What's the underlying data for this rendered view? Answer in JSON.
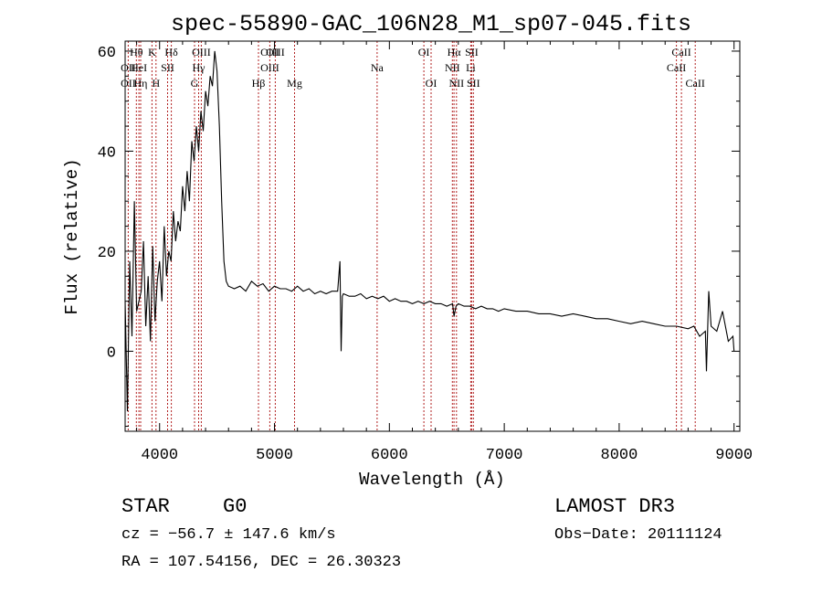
{
  "chart_data": {
    "type": "line",
    "title": "spec-55890-GAC_106N28_M1_sp07-045.fits",
    "xlabel": "Wavelength (Å)",
    "ylabel": "Flux (relative)",
    "xlim": [
      3700,
      9050
    ],
    "ylim": [
      -16,
      62
    ],
    "xticks": [
      4000,
      5000,
      6000,
      7000,
      8000,
      9000
    ],
    "xtick_labels": [
      "4000",
      "5000",
      "6000",
      "7000",
      "8000",
      "9000"
    ],
    "yticks": [
      0,
      20,
      40,
      60
    ],
    "ytick_labels": [
      "0",
      "20",
      "40",
      "60"
    ],
    "x_minor_step": 200,
    "y_minor_step": 5,
    "series": [
      {
        "name": "flux",
        "x": [
          3700,
          3720,
          3740,
          3760,
          3780,
          3800,
          3820,
          3840,
          3860,
          3880,
          3900,
          3920,
          3940,
          3960,
          3980,
          4000,
          4020,
          4040,
          4060,
          4080,
          4100,
          4120,
          4140,
          4160,
          4180,
          4200,
          4220,
          4240,
          4260,
          4280,
          4300,
          4320,
          4340,
          4360,
          4380,
          4400,
          4420,
          4440,
          4460,
          4480,
          4500,
          4520,
          4540,
          4560,
          4580,
          4600,
          4650,
          4700,
          4750,
          4800,
          4850,
          4900,
          4950,
          5000,
          5050,
          5100,
          5150,
          5200,
          5250,
          5300,
          5350,
          5400,
          5450,
          5500,
          5550,
          5570,
          5580,
          5590,
          5600,
          5650,
          5700,
          5750,
          5800,
          5850,
          5900,
          5950,
          6000,
          6050,
          6100,
          6150,
          6200,
          6250,
          6300,
          6350,
          6400,
          6450,
          6500,
          6550,
          6563,
          6580,
          6600,
          6650,
          6700,
          6750,
          6800,
          6850,
          6900,
          6950,
          7000,
          7100,
          7200,
          7300,
          7400,
          7500,
          7600,
          7700,
          7800,
          7900,
          8000,
          8100,
          8200,
          8300,
          8400,
          8500,
          8600,
          8650,
          8700,
          8750,
          8760,
          8780,
          8800,
          8850,
          8900,
          8950,
          8990,
          9000
        ],
        "y": [
          10,
          -12,
          18,
          3,
          30,
          8,
          10,
          12,
          22,
          5,
          15,
          2,
          21,
          6,
          14,
          18,
          10,
          25,
          15,
          20,
          18,
          28,
          22,
          26,
          24,
          33,
          28,
          36,
          30,
          42,
          38,
          45,
          40,
          48,
          44,
          52,
          49,
          55,
          53,
          60,
          56,
          45,
          30,
          18,
          14,
          13,
          12.5,
          13,
          12,
          14,
          13,
          13.5,
          12,
          13,
          12.5,
          12.5,
          12,
          13,
          12,
          12.5,
          11.5,
          12,
          11.5,
          12,
          12,
          18,
          0,
          11,
          11.5,
          11,
          11,
          11.5,
          10.5,
          11,
          10.5,
          11,
          10,
          10.5,
          10,
          10,
          9.5,
          10,
          9.5,
          10,
          9.5,
          9.5,
          9,
          9.5,
          7,
          9,
          9.5,
          9,
          9,
          8.5,
          9,
          8.5,
          8.5,
          8,
          8.5,
          8,
          8,
          7.5,
          7.5,
          7,
          7.5,
          7,
          6.5,
          6.5,
          6,
          5.5,
          6,
          5.5,
          5,
          5,
          4.5,
          5,
          3,
          4,
          -4,
          12,
          5,
          4,
          8,
          2,
          3,
          0
        ]
      }
    ],
    "lines": [
      {
        "label": "Hθ",
        "x": 3798,
        "row": 0
      },
      {
        "label": "OII",
        "x": 3727,
        "row": 1
      },
      {
        "label": "OII",
        "x": 3727,
        "row": 2
      },
      {
        "label": "HeI",
        "x": 3820,
        "row": 1
      },
      {
        "label": "Hη",
        "x": 3835,
        "row": 2
      },
      {
        "label": "K",
        "x": 3934,
        "row": 0
      },
      {
        "label": "SII",
        "x": 4070,
        "row": 1
      },
      {
        "label": "H",
        "x": 3969,
        "row": 2
      },
      {
        "label": "Hδ",
        "x": 4102,
        "row": 0
      },
      {
        "label": "OIII",
        "x": 4363,
        "row": 0
      },
      {
        "label": "Hγ",
        "x": 4340,
        "row": 1
      },
      {
        "label": "G",
        "x": 4304,
        "row": 2
      },
      {
        "label": "OIII",
        "x": 4959,
        "row": 0
      },
      {
        "label": "OIII",
        "x": 4959,
        "row": 1
      },
      {
        "label": "Hβ",
        "x": 4861,
        "row": 2
      },
      {
        "label": "OIII",
        "x": 5007,
        "row": 0
      },
      {
        "label": "Mg",
        "x": 5175,
        "row": 2
      },
      {
        "label": "Na",
        "x": 5893,
        "row": 1
      },
      {
        "label": "OI",
        "x": 6300,
        "row": 0
      },
      {
        "label": "OI",
        "x": 6363,
        "row": 2
      },
      {
        "label": "Hα",
        "x": 6563,
        "row": 0
      },
      {
        "label": "NII",
        "x": 6548,
        "row": 1
      },
      {
        "label": "NII",
        "x": 6584,
        "row": 2
      },
      {
        "label": "SII",
        "x": 6716,
        "row": 0
      },
      {
        "label": "Li",
        "x": 6708,
        "row": 1
      },
      {
        "label": "SII",
        "x": 6731,
        "row": 2
      },
      {
        "label": "CaII",
        "x": 8542,
        "row": 0
      },
      {
        "label": "CaII",
        "x": 8498,
        "row": 1
      },
      {
        "label": "CaII",
        "x": 8662,
        "row": 2
      }
    ]
  },
  "info": {
    "class": "STAR",
    "subclass": "G0",
    "survey": "LAMOST DR3",
    "cz": "cz = −56.7 ± 147.6 km/s",
    "obs_date": "Obs−Date: 20111124",
    "radec": "RA = 107.54156, DEC =  26.30323"
  },
  "colors": {
    "line_marker": "#b22222",
    "axis": "#000000",
    "spectrum": "#000000"
  }
}
